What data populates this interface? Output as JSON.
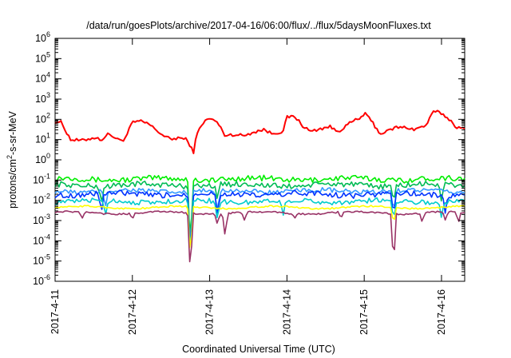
{
  "chart_data": {
    "type": "line",
    "title": "/data/run/goesPlots/archive/2017-04-16/06:00/flux/../flux/5daysMoonFluxes.txt",
    "xlabel": "Coordinated Universal Time (UTC)",
    "ylabel": "protons/cm2-s-sr-MeV",
    "ylabel_parts": {
      "before": "protons/cm",
      "sup": "2",
      "after": "-s-sr-MeV"
    },
    "yscale": "log",
    "xlim": [
      0,
      5.3
    ],
    "ylim_exponents": [
      -6,
      6
    ],
    "y_tick_base": "10",
    "y_tick_exponents": [
      "-6",
      "-5",
      "-4",
      "-3",
      "-2",
      "-1",
      "0",
      "1",
      "2",
      "3",
      "4",
      "5",
      "6"
    ],
    "x_ticks": [
      {
        "x": 0,
        "label": "2017-4-11"
      },
      {
        "x": 1,
        "label": "2017-4-12"
      },
      {
        "x": 2,
        "label": "2017-4-13"
      },
      {
        "x": 3,
        "label": "2017-4-14"
      },
      {
        "x": 4,
        "label": "2017-4-15"
      },
      {
        "x": 5,
        "label": "2017-4-16"
      }
    ],
    "x_unit": "days after 2017-4-11 00:00 UTC",
    "grid": false,
    "legend": "none",
    "series": [
      {
        "color": "#ff0000",
        "base": 1.7,
        "amp": 0.08,
        "knots": [
          [
            0.0,
            1.9
          ],
          [
            0.08,
            1.85
          ],
          [
            0.2,
            1.0
          ],
          [
            0.35,
            0.95
          ],
          [
            0.5,
            1.1
          ],
          [
            0.6,
            1.0
          ],
          [
            0.7,
            1.3
          ],
          [
            0.8,
            1.0
          ],
          [
            0.9,
            1.0
          ],
          [
            1.0,
            1.85
          ],
          [
            1.1,
            1.9
          ],
          [
            1.2,
            1.8
          ],
          [
            1.3,
            1.5
          ],
          [
            1.4,
            1.2
          ],
          [
            1.5,
            1.0
          ],
          [
            1.6,
            1.1
          ],
          [
            1.7,
            1.0
          ],
          [
            1.75,
            0.7
          ],
          [
            1.79,
            0.35
          ],
          [
            1.83,
            1.2
          ],
          [
            1.9,
            1.8
          ],
          [
            2.0,
            2.05
          ],
          [
            2.1,
            1.85
          ],
          [
            2.2,
            1.2
          ],
          [
            2.3,
            1.25
          ],
          [
            2.45,
            1.2
          ],
          [
            2.55,
            1.35
          ],
          [
            2.7,
            1.5
          ],
          [
            2.8,
            1.3
          ],
          [
            2.95,
            1.4
          ],
          [
            3.0,
            2.1
          ],
          [
            3.1,
            2.15
          ],
          [
            3.2,
            1.7
          ],
          [
            3.3,
            1.4
          ],
          [
            3.45,
            1.55
          ],
          [
            3.55,
            1.65
          ],
          [
            3.65,
            1.4
          ],
          [
            3.7,
            1.5
          ],
          [
            3.85,
            1.9
          ],
          [
            3.95,
            2.05
          ],
          [
            4.0,
            2.3
          ],
          [
            4.1,
            1.9
          ],
          [
            4.2,
            1.3
          ],
          [
            4.3,
            1.4
          ],
          [
            4.4,
            1.6
          ],
          [
            4.55,
            1.6
          ],
          [
            4.65,
            1.5
          ],
          [
            4.8,
            1.7
          ],
          [
            4.9,
            2.4
          ],
          [
            5.0,
            2.3
          ],
          [
            5.1,
            2.0
          ],
          [
            5.2,
            1.6
          ],
          [
            5.3,
            1.5
          ]
        ],
        "dips": []
      },
      {
        "color": "#00ee00",
        "base": -0.95,
        "amp": 0.14,
        "knots": [],
        "dips": [
          [
            1.75,
            -4.5
          ]
        ]
      },
      {
        "color": "#00bb55",
        "base": -1.25,
        "amp": 0.14,
        "knots": [],
        "dips": [
          [
            1.75,
            -4.6
          ],
          [
            0.6,
            -2.2
          ],
          [
            2.1,
            -2.0
          ],
          [
            4.38,
            -2.1
          ],
          [
            5.0,
            -2.1
          ]
        ]
      },
      {
        "color": "#3399ff",
        "base": -1.55,
        "amp": 0.12,
        "knots": [],
        "dips": [
          [
            1.75,
            -4.8
          ],
          [
            0.65,
            -2.4
          ],
          [
            2.1,
            -2.6
          ],
          [
            4.38,
            -2.6
          ]
        ]
      },
      {
        "color": "#0033ff",
        "base": -1.7,
        "amp": 0.14,
        "knots": [],
        "dips": [
          [
            1.75,
            -4.9
          ],
          [
            0.6,
            -2.6
          ],
          [
            2.1,
            -2.8
          ],
          [
            4.38,
            -2.7
          ],
          [
            5.05,
            -2.7
          ]
        ]
      },
      {
        "color": "#00cccc",
        "base": -2.05,
        "amp": 0.12,
        "knots": [],
        "dips": [
          [
            1.75,
            -5.0
          ],
          [
            0.65,
            -2.8
          ],
          [
            2.1,
            -3.0
          ],
          [
            2.95,
            -2.8
          ],
          [
            4.38,
            -3.0
          ],
          [
            5.0,
            -2.9
          ]
        ]
      },
      {
        "color": "#ffff00",
        "base": -2.35,
        "amp": 0.04,
        "knots": [],
        "dips": [
          [
            1.75,
            -5.0
          ],
          [
            4.38,
            -3.2
          ]
        ]
      },
      {
        "color": "#993366",
        "base": -2.62,
        "amp": 0.04,
        "knots": [],
        "dips": [
          [
            0.35,
            -2.9
          ],
          [
            1.0,
            -2.95
          ],
          [
            1.75,
            -5.8
          ],
          [
            2.1,
            -3.2
          ],
          [
            2.2,
            -3.8
          ],
          [
            2.45,
            -3.0
          ],
          [
            3.1,
            -2.9
          ],
          [
            3.7,
            -2.9
          ],
          [
            4.38,
            -5.3
          ],
          [
            4.75,
            -3.1
          ],
          [
            5.05,
            -3.0
          ],
          [
            5.22,
            -3.1
          ]
        ]
      }
    ]
  }
}
